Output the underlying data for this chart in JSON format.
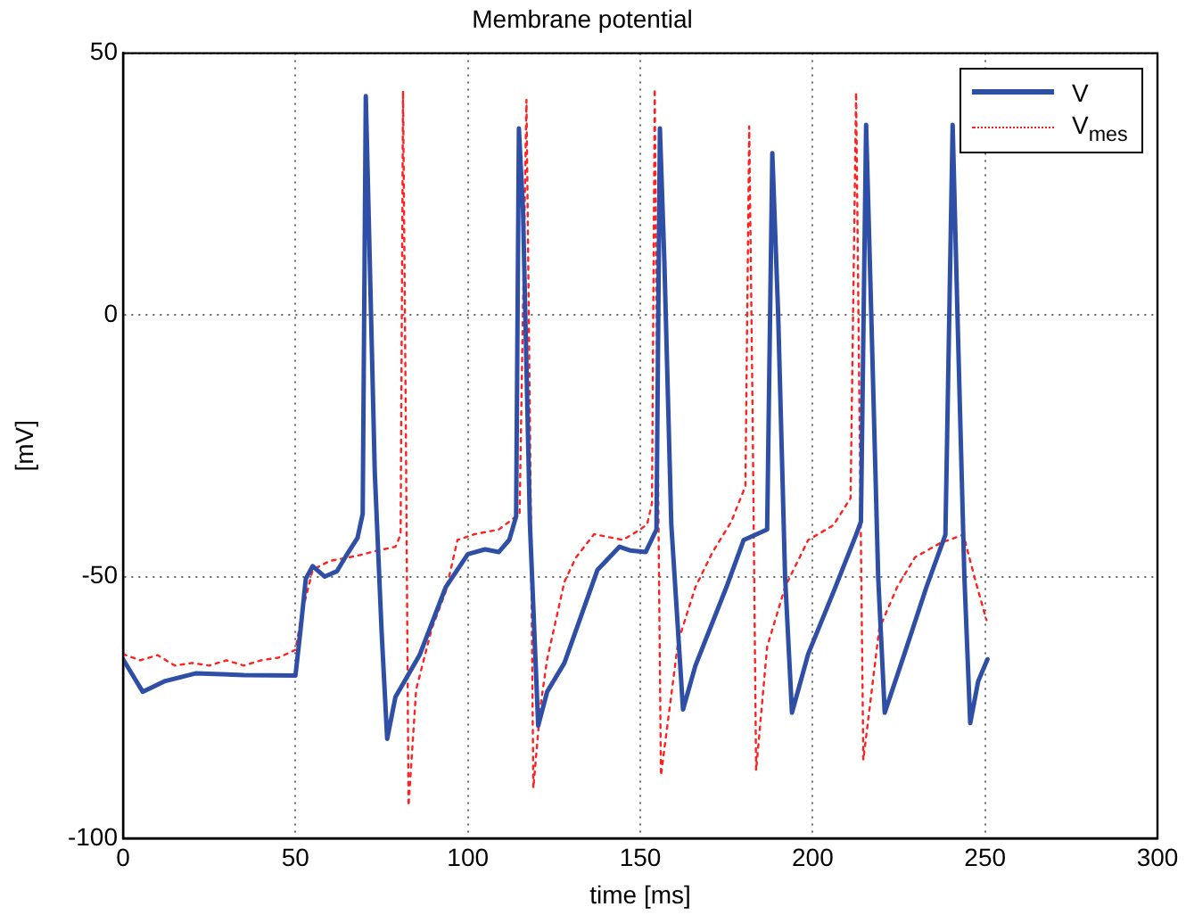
{
  "chart_data": {
    "type": "line",
    "title": "Membrane potential",
    "xlabel": "time [ms]",
    "ylabel": "[mV]",
    "xlim": [
      0,
      300
    ],
    "xticks": [
      0,
      50,
      100,
      150,
      200,
      250,
      300
    ],
    "ylim": [
      -100,
      50
    ],
    "yticks": [
      -100,
      -50,
      0,
      50
    ],
    "grid": true,
    "legend": "top right",
    "marker": "none",
    "series": [
      {
        "name": "V",
        "color": "#2f4fa6",
        "line_style": "solid",
        "x": [
          0,
          5.7,
          12,
          21,
          35,
          50,
          51.5,
          53,
          55,
          58.5,
          62,
          65,
          68,
          69.5,
          70.4,
          71.2,
          73,
          75,
          76.6,
          79,
          86,
          93.6,
          100,
          105,
          109,
          112,
          114,
          114.8,
          116,
          118,
          120.4,
          123,
          128,
          137.6,
          144,
          147,
          151.6,
          154.7,
          155.7,
          157,
          159,
          162.4,
          166,
          175,
          180,
          186.8,
          188.3,
          190,
          192,
          194,
          198.7,
          206,
          212.6,
          214,
          215.5,
          217,
          219,
          220.9,
          226.6,
          233,
          238.5,
          240.6,
          242,
          244,
          245.7,
          248,
          250.7
        ],
        "values": [
          -65.8,
          -72,
          -70,
          -68.5,
          -68.8,
          -68.9,
          -60,
          -50.4,
          -48,
          -50,
          -49,
          -45.7,
          -42.6,
          -38,
          41.8,
          20,
          -30,
          -60.7,
          -81,
          -73,
          -65,
          -52,
          -45.7,
          -44.8,
          -45.3,
          -43,
          -38.5,
          35.6,
          20,
          -40,
          -78.5,
          -72,
          -66.5,
          -48.7,
          -44.3,
          -45,
          -45.3,
          -41,
          35.6,
          10,
          -40,
          -75.4,
          -67,
          -52,
          -43,
          -41,
          30.9,
          0,
          -50,
          -76,
          -64.8,
          -53,
          -42,
          -39.5,
          36.3,
          0,
          -50,
          -76,
          -64.8,
          -52,
          -42,
          36.3,
          0,
          -50,
          -78,
          -70,
          -65.8
        ]
      },
      {
        "name": "V$_{mes}$",
        "color": "#ff2020",
        "line_style": "dotted",
        "x": [
          0,
          5,
          10,
          15,
          20,
          25,
          30,
          35,
          40,
          45,
          50,
          52,
          55,
          60,
          68,
          74,
          79,
          80.5,
          81.2,
          82,
          82.8,
          85,
          89.5,
          93.6,
          97,
          102,
          109,
          113,
          115,
          117,
          118,
          119,
          121,
          123,
          128,
          131.4,
          136.6,
          145,
          150,
          152,
          153.4,
          154.2,
          155,
          156,
          161,
          166,
          171,
          176.4,
          180.5,
          181.6,
          182.6,
          183.6,
          186.8,
          192,
          198.7,
          206,
          211,
          212.6,
          213.6,
          214.7,
          219.3,
          224.5,
          229.7,
          237,
          243.7,
          247.3,
          250.4
        ],
        "values": [
          -64.8,
          -66,
          -65,
          -67,
          -66.5,
          -67,
          -66,
          -67,
          -66,
          -65.5,
          -64,
          -56.6,
          -48.7,
          -47,
          -46,
          -45,
          -44.3,
          -42,
          42.8,
          -20,
          -93.8,
          -71.6,
          -60,
          -52.8,
          -43,
          -41.9,
          -41,
          -39,
          -38,
          41.1,
          -20,
          -90.4,
          -75,
          -65.8,
          -51,
          -46.3,
          -41.9,
          -43,
          -41,
          -40,
          -36,
          43.2,
          -20,
          -88,
          -62.4,
          -52,
          -45.3,
          -39.5,
          -32.7,
          36,
          -20,
          -87,
          -63.4,
          -52,
          -43,
          -40.2,
          -35,
          42.5,
          -20,
          -85,
          -60,
          -52,
          -46.3,
          -43.6,
          -42,
          -51,
          -58.3
        ]
      }
    ]
  }
}
